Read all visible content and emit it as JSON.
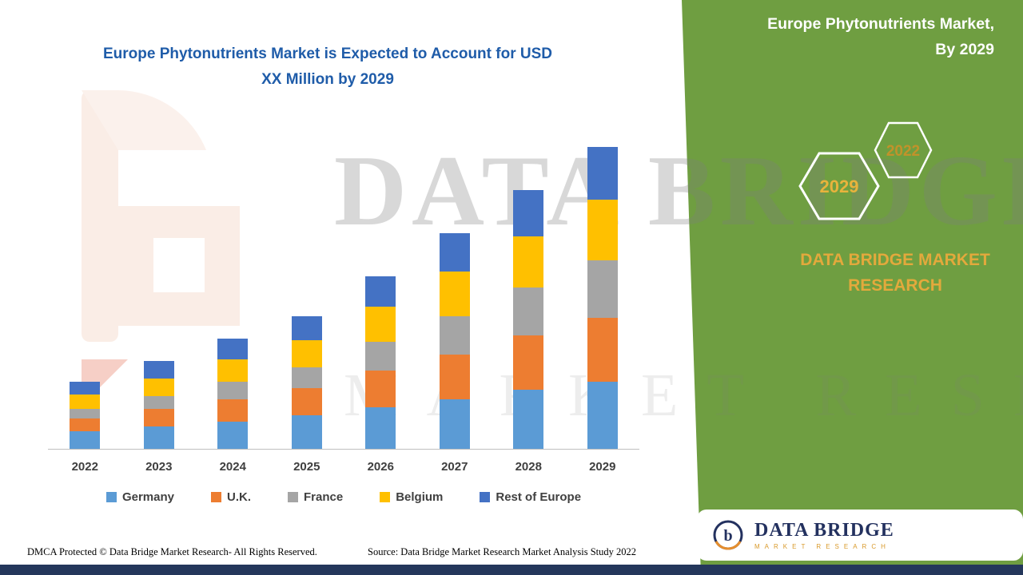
{
  "colors": {
    "panel_green": "#6F9E41",
    "accent_gold": "#E3A93C",
    "title_blue": "#1F5CA9",
    "brand_navy": "#23315F",
    "footer_strip_navy": "#24375B"
  },
  "main": {
    "title_line1": "Europe Phytonutrients Market is Expected to Account for USD",
    "title_line2": "XX Million by 2029"
  },
  "watermark": {
    "line1": "DATA BRIDGE",
    "line2": "MARKET RESEARCH"
  },
  "side_panel": {
    "title_line1": "Europe Phytonutrients Market,",
    "title_line2": "By 2029",
    "hexagon_primary_label": "2029",
    "hexagon_secondary_label": "2022",
    "brand_line1": "DATA BRIDGE MARKET",
    "brand_line2": "RESEARCH"
  },
  "logo_card": {
    "brand": "DATA BRIDGE",
    "subtitle": "MARKET RESEARCH",
    "monogram": "b"
  },
  "footer": {
    "dmca": "DMCA Protected © Data Bridge Market Research- All Rights Reserved.",
    "source": "Source: Data Bridge Market Research Market Analysis Study 2022"
  },
  "chart_data": {
    "type": "bar",
    "stacked": true,
    "title": "Europe Phytonutrients Market is Expected to Account for USD XX Million by 2029",
    "categories": [
      "2022",
      "2023",
      "2024",
      "2025",
      "2026",
      "2027",
      "2028",
      "2029"
    ],
    "series": [
      {
        "name": "Germany",
        "color": "#5B9BD5",
        "values": [
          22,
          28,
          34,
          42,
          52,
          62,
          74,
          84
        ]
      },
      {
        "name": "U.K.",
        "color": "#ED7D31",
        "values": [
          16,
          22,
          28,
          34,
          46,
          56,
          68,
          80
        ]
      },
      {
        "name": "France",
        "color": "#A5A5A5",
        "values": [
          12,
          16,
          22,
          26,
          36,
          48,
          60,
          72
        ]
      },
      {
        "name": "Belgium",
        "color": "#FFC000",
        "values": [
          18,
          22,
          28,
          34,
          44,
          56,
          64,
          76
        ]
      },
      {
        "name": "Rest of Europe",
        "color": "#4472C4",
        "values": [
          16,
          22,
          26,
          30,
          38,
          48,
          58,
          66
        ]
      }
    ],
    "totals": [
      84,
      110,
      138,
      166,
      216,
      270,
      324,
      378
    ],
    "xlabel": "",
    "ylabel": "",
    "value_axis_labels_visible": false,
    "values_note": "relative units estimated from stacked bar heights; no numeric value axis is shown in the figure",
    "ylim": [
      0,
      442
    ],
    "legend_position": "bottom",
    "grid": false
  }
}
